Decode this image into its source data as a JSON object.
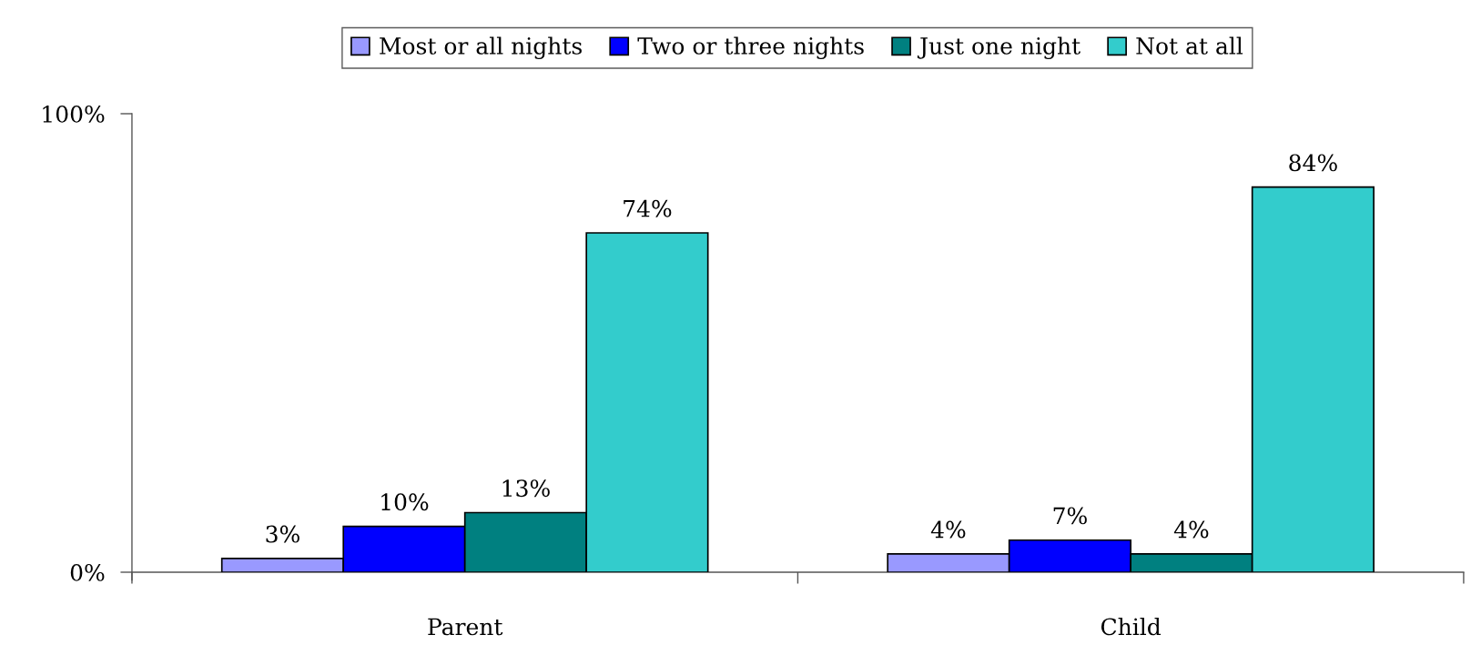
{
  "chart_data": {
    "type": "bar",
    "categories": [
      "Parent",
      "Child"
    ],
    "series": [
      {
        "name": "Most or all nights",
        "color": "#9999ff",
        "values": [
          3,
          4
        ],
        "value_labels": [
          "3%",
          "4%"
        ]
      },
      {
        "name": "Two or three nights",
        "color": "#0000ff",
        "values": [
          10,
          7
        ],
        "value_labels": [
          "10%",
          "7%"
        ]
      },
      {
        "name": "Just one night",
        "color": "#008080",
        "values": [
          13,
          4
        ],
        "value_labels": [
          "13%",
          "4%"
        ]
      },
      {
        "name": "Not at all",
        "color": "#33cccc",
        "values": [
          74,
          84
        ],
        "value_labels": [
          "74%",
          "84%"
        ]
      }
    ],
    "ylim": [
      0,
      100
    ],
    "yticks": [
      {
        "value": 0,
        "label": "0%"
      },
      {
        "value": 100,
        "label": "100%"
      }
    ],
    "grid": false,
    "legend": "top"
  }
}
